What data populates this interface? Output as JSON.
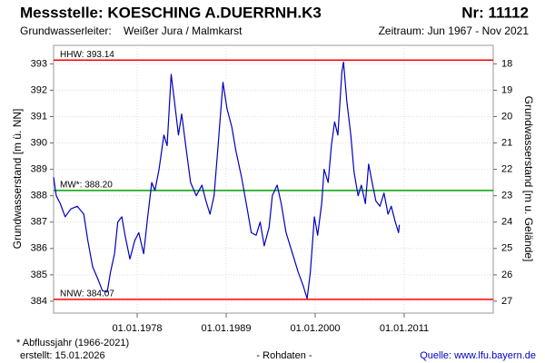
{
  "chart_data": {
    "type": "line",
    "title": "Messstelle: KOESCHING A.DUERRNH.K3",
    "number": "Nr: 11112",
    "aquifer_label": "Grundwasserleiter:",
    "aquifer": "Weißer Jura / Malmkarst",
    "period": "Zeitraum: Jun 1967 - Nov 2021",
    "ylabel": "Grundwasserstand [m ü. NN]",
    "y2label": "Grundwasserstand [m u. Gelände]",
    "footnote": "* Abflussjahr (1966-2021)",
    "created": "erstellt:  15.01.2026",
    "data_note": "- Rohdaten -",
    "source": "Quelle: www.lfu.bayern.de",
    "color": "#0000c0",
    "grid": true,
    "xlim": [
      1967.67,
      2022.0
    ],
    "xticks": [
      {
        "value": 1978,
        "label": "01.01.1978"
      },
      {
        "value": 1989,
        "label": "01.01.1989"
      },
      {
        "value": 2000,
        "label": "01.01.2000"
      },
      {
        "value": 2011,
        "label": "01.01.2011"
      }
    ],
    "ylim": [
      383.55,
      393.7
    ],
    "yticks": [
      384,
      385,
      386,
      387,
      388,
      389,
      390,
      391,
      392,
      393
    ],
    "y2lim": [
      27.45,
      17.3
    ],
    "y2ticks": [
      18,
      19,
      20,
      21,
      22,
      23,
      24,
      25,
      26,
      27
    ],
    "reference_lines": [
      {
        "label": "HHW: 393.14",
        "value": 393.14,
        "color": "#ff0000"
      },
      {
        "label": "MW*: 388.20",
        "value": 388.2,
        "color": "#00a000"
      },
      {
        "label": "NNW: 384.07",
        "value": 384.07,
        "color": "#ff0000"
      }
    ],
    "x": [
      1967.67,
      1968.0,
      1968.5,
      1969.1,
      1969.8,
      1970.6,
      1971.4,
      1971.9,
      1972.5,
      1973.2,
      1973.7,
      1974.3,
      1974.7,
      1975.2,
      1975.6,
      1976.1,
      1976.5,
      1977.1,
      1977.7,
      1978.2,
      1978.8,
      1979.3,
      1979.8,
      1980.2,
      1980.7,
      1981.3,
      1981.7,
      1982.2,
      1982.6,
      1983.1,
      1983.5,
      1984.0,
      1984.6,
      1985.3,
      1986.0,
      1986.5,
      1987.0,
      1987.5,
      1988.0,
      1988.6,
      1989.1,
      1989.7,
      1990.2,
      1990.9,
      1991.6,
      1992.1,
      1992.7,
      1993.2,
      1993.7,
      1994.3,
      1994.7,
      1995.3,
      1995.8,
      1996.4,
      1997.2,
      1997.9,
      1998.5,
      1999.0,
      1999.4,
      1999.9,
      2000.3,
      2000.8,
      2001.1,
      2001.6,
      2002.0,
      2002.4,
      2002.8,
      2003.3,
      2003.5,
      2003.9,
      2004.4,
      2004.8,
      2005.3,
      2005.7,
      2006.2,
      2006.6,
      2007.1,
      2007.5,
      2008.0,
      2008.5,
      2009.0,
      2009.4,
      2009.9,
      2010.3,
      2010.4
    ],
    "values": [
      388.7,
      388.0,
      387.7,
      387.2,
      387.5,
      387.6,
      387.3,
      386.3,
      385.3,
      384.8,
      384.4,
      384.35,
      385.1,
      385.8,
      387.0,
      387.2,
      386.5,
      385.6,
      386.3,
      386.6,
      385.8,
      387.2,
      388.5,
      388.2,
      389.0,
      390.3,
      389.9,
      392.6,
      391.6,
      390.3,
      391.1,
      389.9,
      388.5,
      388.0,
      388.4,
      387.8,
      387.3,
      388.0,
      389.9,
      392.3,
      391.3,
      390.6,
      389.7,
      388.7,
      387.5,
      386.6,
      386.5,
      387.0,
      386.1,
      386.8,
      388.0,
      388.4,
      387.7,
      386.6,
      385.8,
      385.1,
      384.6,
      384.1,
      385.1,
      387.2,
      386.5,
      387.7,
      389.0,
      388.5,
      389.9,
      390.8,
      390.3,
      392.7,
      393.07,
      391.6,
      390.3,
      388.9,
      388.0,
      388.4,
      387.7,
      389.2,
      388.4,
      387.8,
      387.6,
      388.1,
      387.3,
      387.6,
      387.0,
      386.6,
      386.9
    ]
  }
}
